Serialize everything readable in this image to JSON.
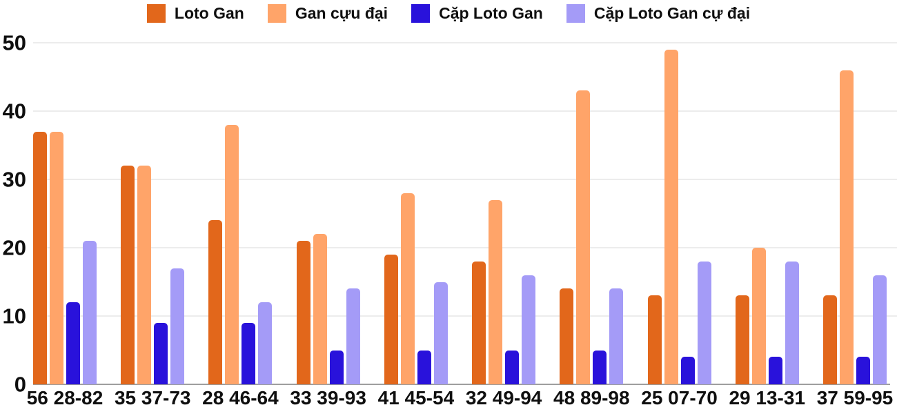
{
  "chart": {
    "background_color": "#ffffff",
    "grid_color": "#ececec",
    "baseline_color": "#9e9e9e",
    "text_color": "#0f0f0f"
  },
  "chart_data": {
    "type": "bar",
    "title": "",
    "xlabel": "",
    "ylabel": "",
    "ylim": [
      0,
      50
    ],
    "y_ticks": [
      0,
      10,
      20,
      30,
      40,
      50
    ],
    "grid": true,
    "legend_position": "top",
    "categories": [
      "56 28-82",
      "35 37-73",
      "28 46-64",
      "33 39-93",
      "41 45-54",
      "32 49-94",
      "48 89-98",
      "25 07-70",
      "29 13-31",
      "37 59-95"
    ],
    "series": [
      {
        "name": "Loto Gan",
        "color": "#e2671b",
        "values": [
          37,
          32,
          24,
          21,
          19,
          18,
          14,
          13,
          13,
          13
        ]
      },
      {
        "name": "Gan cựu đại",
        "color": "#ffa469",
        "values": [
          37,
          32,
          38,
          22,
          28,
          27,
          43,
          49,
          20,
          46
        ]
      },
      {
        "name": "Cặp Loto Gan",
        "color": "#2912db",
        "values": [
          12,
          9,
          9,
          5,
          5,
          5,
          5,
          4,
          4,
          4
        ]
      },
      {
        "name": "Cặp Loto Gan cự đại",
        "color": "#a49bf7",
        "values": [
          21,
          17,
          12,
          14,
          15,
          16,
          14,
          18,
          18,
          16
        ]
      }
    ]
  }
}
